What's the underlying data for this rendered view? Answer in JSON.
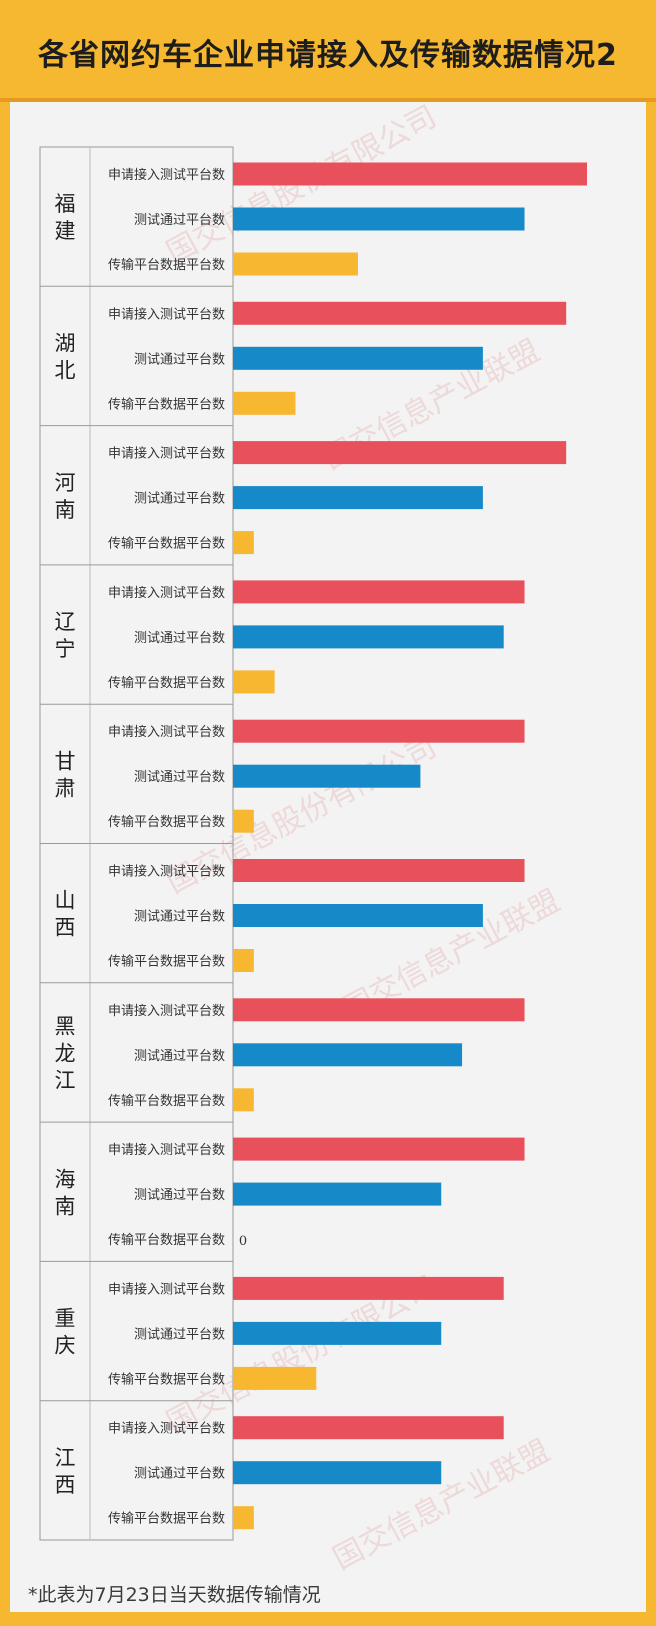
{
  "title": "各省网约车企业申请接入及传输数据情况2",
  "footnote": "*此表为7月23日当天数据传输情况",
  "watermarks": [
    "国交信息股份有限公司",
    "国交信息产业联盟"
  ],
  "colors": {
    "applied": "#e8505b",
    "tested": "#1689c9",
    "transmitting": "#f7b731",
    "header": "#f6b830",
    "background": "#f3f3f3"
  },
  "chart_data": {
    "type": "bar",
    "orientation": "horizontal",
    "title": "各省网约车企业申请接入及传输数据情况2",
    "series_labels": [
      "申请接入测试平台数",
      "测试通过平台数",
      "传输平台数据平台数"
    ],
    "xlim": [
      0,
      17
    ],
    "grid": false,
    "groups": [
      {
        "province": "福建",
        "values": [
          17,
          14,
          6
        ]
      },
      {
        "province": "湖北",
        "values": [
          16,
          12,
          3
        ]
      },
      {
        "province": "河南",
        "values": [
          16,
          12,
          1
        ]
      },
      {
        "province": "辽宁",
        "values": [
          14,
          13,
          2
        ]
      },
      {
        "province": "甘肃",
        "values": [
          14,
          9,
          1
        ]
      },
      {
        "province": "山西",
        "values": [
          14,
          12,
          1
        ]
      },
      {
        "province": "黑龙江",
        "values": [
          14,
          11,
          1
        ]
      },
      {
        "province": "海南",
        "values": [
          14,
          10,
          0
        ]
      },
      {
        "province": "重庆",
        "values": [
          13,
          10,
          4
        ]
      },
      {
        "province": "江西",
        "values": [
          13,
          10,
          1
        ]
      }
    ],
    "zero_label": "0"
  }
}
